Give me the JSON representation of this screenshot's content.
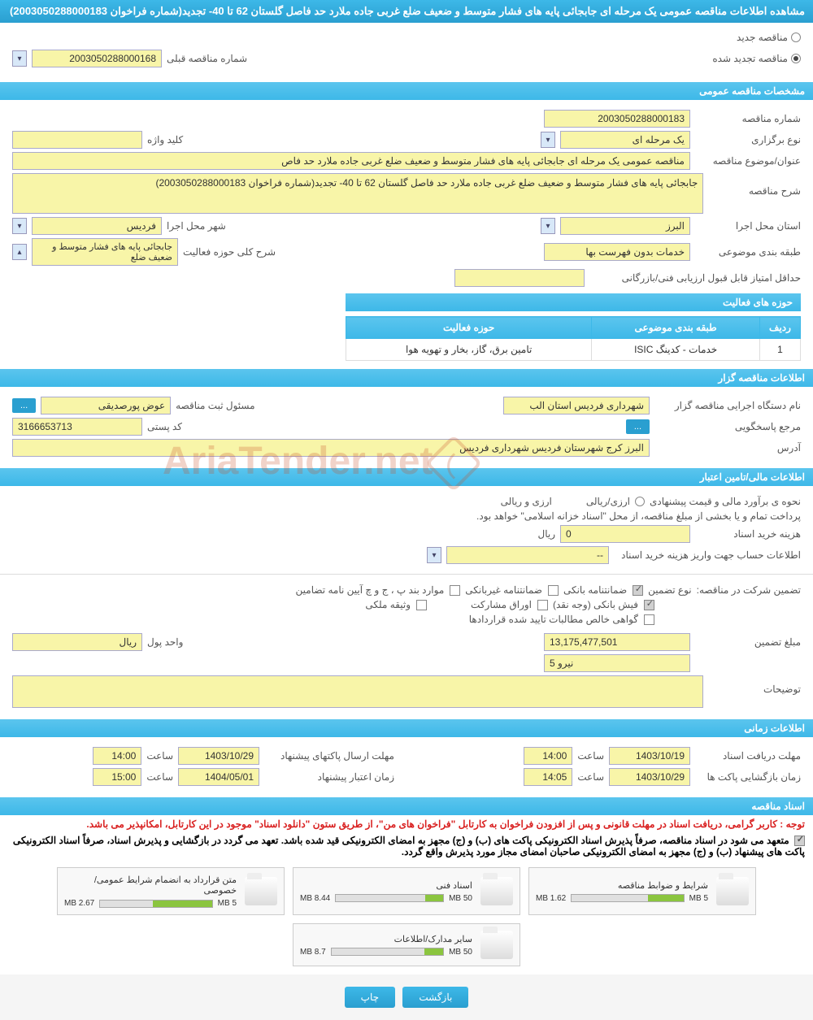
{
  "header": {
    "title": "مشاهده اطلاعات مناقصه عمومی یک مرحله ای جابجائی پایه های فشار متوسط و ضعیف ضلع غربی جاده ملارد حد فاصل گلستان 62 تا 40- تجدید(شماره فراخوان 2003050288000183)"
  },
  "tender_type": {
    "new_label": "مناقصه جدید",
    "renewed_label": "مناقصه تجدید شده",
    "prev_number_label": "شماره مناقصه قبلی",
    "prev_number": "2003050288000168"
  },
  "general": {
    "section_title": "مشخصات مناقصه عمومی",
    "number_label": "شماره مناقصه",
    "number": "2003050288000183",
    "type_label": "نوع برگزاری",
    "type": "یک مرحله ای",
    "keyword_label": "کلید واژه",
    "keyword": "",
    "subject_label": "عنوان/موضوع مناقصه",
    "subject": "مناقصه عمومی یک مرحله ای جابجائی پایه های فشار متوسط و ضعیف ضلع غربی جاده ملارد حد فاص",
    "desc_label": "شرح مناقصه",
    "desc": "جابجائی پایه های فشار متوسط و ضعیف ضلع غربی جاده ملارد حد فاصل گلستان 62 تا 40- تجدید(شماره فراخوان 2003050288000183)",
    "province_label": "استان محل اجرا",
    "province": "البرز",
    "city_label": "شهر محل اجرا",
    "city": "فردیس",
    "category_label": "طبقه بندی موضوعی",
    "category": "خدمات بدون فهرست بها",
    "activity_desc_label": "شرح کلی حوزه فعالیت",
    "activity_desc": "جابجائی پایه های فشار متوسط و ضعیف ضلع",
    "min_score_label": "حداقل امتیاز قابل قبول ارزیابی فنی/بازرگانی",
    "min_score": ""
  },
  "activity_table": {
    "title": "حوزه های فعالیت",
    "col_row": "ردیف",
    "col_category": "طبقه بندی موضوعی",
    "col_activity": "حوزه فعالیت",
    "rows": [
      {
        "n": "1",
        "cat": "خدمات - کدینگ ISIC",
        "act": "تامین برق، گاز، بخار و تهویه هوا"
      }
    ]
  },
  "organizer": {
    "section_title": "اطلاعات مناقصه گزار",
    "org_label": "نام دستگاه اجرایی مناقصه گزار",
    "org": "شهرداری فردیس استان الب",
    "responsible_label": "مسئول ثبت مناقصه",
    "responsible": "عوض پورصدیقی",
    "contact_label": "مرجع پاسخگویی",
    "postal_label": "کد پستی",
    "postal": "3166653713",
    "address_label": "آدرس",
    "address": "البرز کرج شهرستان فردیس شهرداری فردیس",
    "more_btn": "..."
  },
  "financial": {
    "section_title": "اطلاعات مالی/تامین اعتبار",
    "estimate_label": "نحوه ی برآورد مالی و قیمت پیشنهادی",
    "currency_type": "ارزی/ریالی",
    "currency_pair": "ارزی و ریالی",
    "treasury_note": "پرداخت تمام و یا بخشی از مبلغ مناقصه، از محل \"اسناد خزانه اسلامی\" خواهد بود.",
    "doc_fee_label": "هزینه خرید اسناد",
    "doc_fee": "0",
    "rial": "ریال",
    "account_label": "اطلاعات حساب جهت واریز هزینه خرید اسناد",
    "account": "--"
  },
  "guarantee": {
    "intro_label": "تضمین شرکت در مناقصه:",
    "type_label": "نوع تضمین",
    "g1": "ضمانتنامه بانکی",
    "g2": "ضمانتنامه غیربانکی",
    "g3": "موارد بند پ ، ج و چ آیین نامه تضامین",
    "g4": "فیش بانکی (وجه نقد)",
    "g5": "اوراق مشارکت",
    "g6": "وثیقه ملکی",
    "g7": "گواهی خالص مطالبات تایید شده قراردادها",
    "amount_label": "مبلغ تضمین",
    "amount": "13,175,477,501",
    "unit_label": "واحد پول",
    "unit": "ریال",
    "niroo": "5 نیرو",
    "notes_label": "توضیحات"
  },
  "timing": {
    "section_title": "اطلاعات زمانی",
    "receive_label": "مهلت دریافت اسناد",
    "receive_date": "1403/10/19",
    "receive_time_label": "ساعت",
    "receive_time": "14:00",
    "submit_label": "مهلت ارسال پاکتهای پیشنهاد",
    "submit_date": "1403/10/29",
    "submit_time": "14:00",
    "open_label": "زمان بازگشایی پاکت ها",
    "open_date": "1403/10/29",
    "open_time_label": "ساعت",
    "open_time": "14:05",
    "validity_label": "زمان اعتبار پیشنهاد",
    "validity_date": "1404/05/01",
    "validity_time": "15:00"
  },
  "docs": {
    "section_title": "اسناد مناقصه",
    "note1": "توجه : کاربر گرامی، دریافت اسناد در مهلت قانونی و پس از افزودن فراخوان به کارتابل \"فراخوان های من\"، از طریق ستون \"دانلود اسناد\" موجود در این کارتابل، امکانپذیر می باشد.",
    "note2": "متعهد می شود در اسناد مناقصه، صرفاً پذیرش اسناد الکترونیکی پاکت های (ب) و (ج) مجهز به امضای الکترونیکی قید شده باشد. تعهد می گردد در بازگشایی و پذیرش اسناد، صرفاً اسناد الکترونیکی پاکت های پیشنهاد (ب) و (ج) مجهز به امضای الکترونیکی صاحبان امضای مجاز مورد پذیرش واقع گردد.",
    "items": [
      {
        "title": "شرایط و ضوابط مناقصه",
        "size": "1.62 MB",
        "max": "5 MB",
        "pct": 32
      },
      {
        "title": "اسناد فنی",
        "size": "8.44 MB",
        "max": "50 MB",
        "pct": 17
      },
      {
        "title": "متن قرارداد به انضمام شرایط عمومی/خصوصی",
        "size": "2.67 MB",
        "max": "5 MB",
        "pct": 53
      },
      {
        "title": "سایر مدارک/اطلاعات",
        "size": "8.7 MB",
        "max": "50 MB",
        "pct": 17
      }
    ]
  },
  "footer": {
    "back": "بازگشت",
    "print": "چاپ"
  },
  "watermark": "AriaTender.net",
  "colors": {
    "header_bg": "#3db8e8",
    "field_bg": "#f8f5a8",
    "progress": "#8bc53f"
  }
}
